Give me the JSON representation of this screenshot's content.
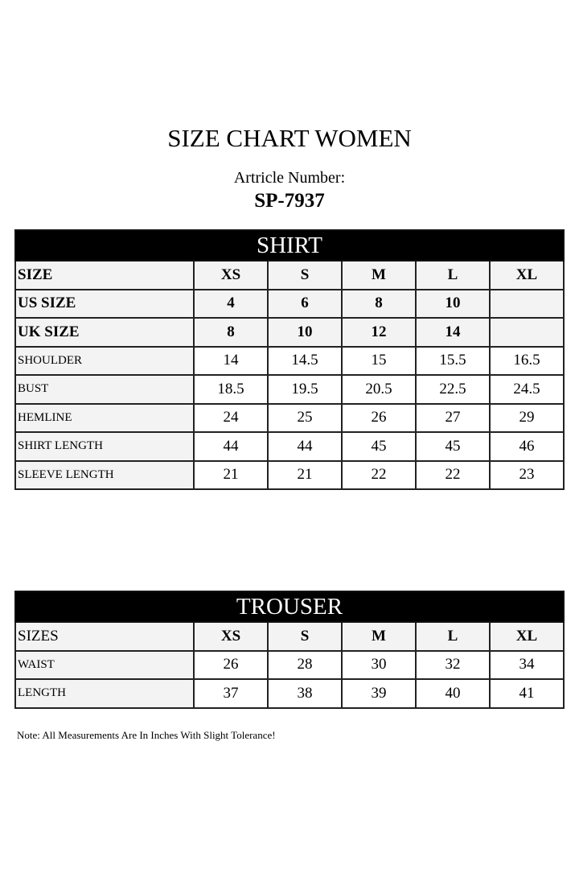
{
  "title": "SIZE CHART WOMEN",
  "article_label": "Artricle Number:",
  "article_number": "SP-7937",
  "shirt": {
    "heading": "SHIRT",
    "header_rows": [
      {
        "label": "SIZE",
        "values": [
          "XS",
          "S",
          "M",
          "L",
          "XL"
        ]
      },
      {
        "label": "US SIZE",
        "values": [
          "4",
          "6",
          "8",
          "10",
          ""
        ]
      },
      {
        "label": "UK SIZE",
        "values": [
          "8",
          "10",
          "12",
          "14",
          ""
        ]
      }
    ],
    "rows": [
      {
        "label": "SHOULDER",
        "values": [
          "14",
          "14.5",
          "15",
          "15.5",
          "16.5"
        ]
      },
      {
        "label": "BUST",
        "values": [
          "18.5",
          "19.5",
          "20.5",
          "22.5",
          "24.5"
        ]
      },
      {
        "label": "HEMLINE",
        "values": [
          "24",
          "25",
          "26",
          "27",
          "29"
        ]
      },
      {
        "label": "SHIRT LENGTH",
        "values": [
          "44",
          "44",
          "45",
          "45",
          "46"
        ]
      },
      {
        "label": "SLEEVE LENGTH",
        "values": [
          "21",
          "21",
          "22",
          "22",
          "23"
        ]
      }
    ]
  },
  "trouser": {
    "heading": "TROUSER",
    "header_rows": [
      {
        "label": "SIZES",
        "values": [
          "XS",
          "S",
          "M",
          "L",
          "XL"
        ]
      }
    ],
    "rows": [
      {
        "label": "WAIST",
        "values": [
          "26",
          "28",
          "30",
          "32",
          "34"
        ]
      },
      {
        "label": "LENGTH",
        "values": [
          "37",
          "38",
          "39",
          "40",
          "41"
        ]
      }
    ]
  },
  "note": "Note: All Measurements Are In Inches With Slight Tolerance!"
}
